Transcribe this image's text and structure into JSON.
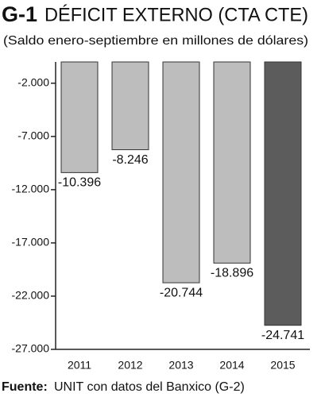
{
  "chart_data": {
    "type": "bar",
    "title_code": "G-1",
    "title": "DÉFICIT EXTERNO (CTA CTE)",
    "subtitle": "(Saldo enero-septiembre en millones de dólares)",
    "categories": [
      "2011",
      "2012",
      "2013",
      "2014",
      "2015"
    ],
    "values": [
      -10396,
      -8246,
      -20744,
      -18896,
      -24741
    ],
    "value_labels": [
      "-10.396",
      "-8.246",
      "-20.744",
      "-18.896",
      "-24.741"
    ],
    "colors": [
      "#bdbdbd",
      "#bdbdbd",
      "#bdbdbd",
      "#bdbdbd",
      "#5c5c5c"
    ],
    "ylim": [
      -27000,
      0
    ],
    "yticks": [
      {
        "value": -2000,
        "label": "-2.000"
      },
      {
        "value": -7000,
        "label": "-7.000"
      },
      {
        "value": -12000,
        "label": "-12.000"
      },
      {
        "value": -17000,
        "label": "-17.000"
      },
      {
        "value": -22000,
        "label": "-22.000"
      },
      {
        "value": -27000,
        "label": "-27.000"
      }
    ],
    "source_label": "Fuente:",
    "source": "UNIT con datos del Banxico (G-2)"
  }
}
